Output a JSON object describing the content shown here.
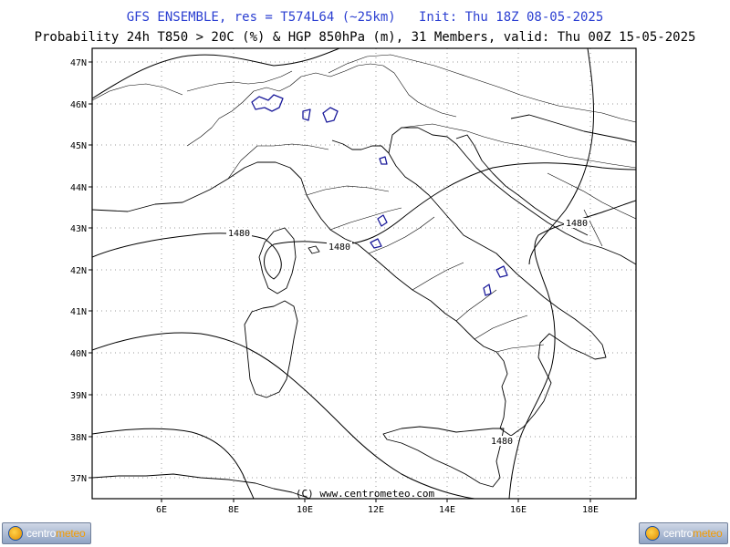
{
  "header": {
    "line1": "GFS ENSEMBLE, res = T574L64 (~25km)   Init: Thu 18Z 08-05-2025",
    "line2": "Probability 24h T850 > 20C (%) & HGP 850hPa (m), 31 Members, valid: Thu 00Z 15-05-2025"
  },
  "map": {
    "lat_labels": [
      "47N",
      "46N",
      "45N",
      "44N",
      "43N",
      "42N",
      "41N",
      "40N",
      "39N",
      "38N",
      "37N"
    ],
    "lon_labels": [
      "6E",
      "8E",
      "10E",
      "12E",
      "14E",
      "16E",
      "18E"
    ],
    "contour_labels": [
      "1480",
      "1480",
      "1480",
      "1480"
    ],
    "copyright": "(C) www.centrometeo.com",
    "colors": {
      "border": "#000000",
      "contour": "#000000",
      "coast": "#000000",
      "probability": "#1a1a9a",
      "grid": "#9a9a9a"
    }
  },
  "logos": {
    "brand_left": "centro",
    "brand_right": "meteo"
  }
}
